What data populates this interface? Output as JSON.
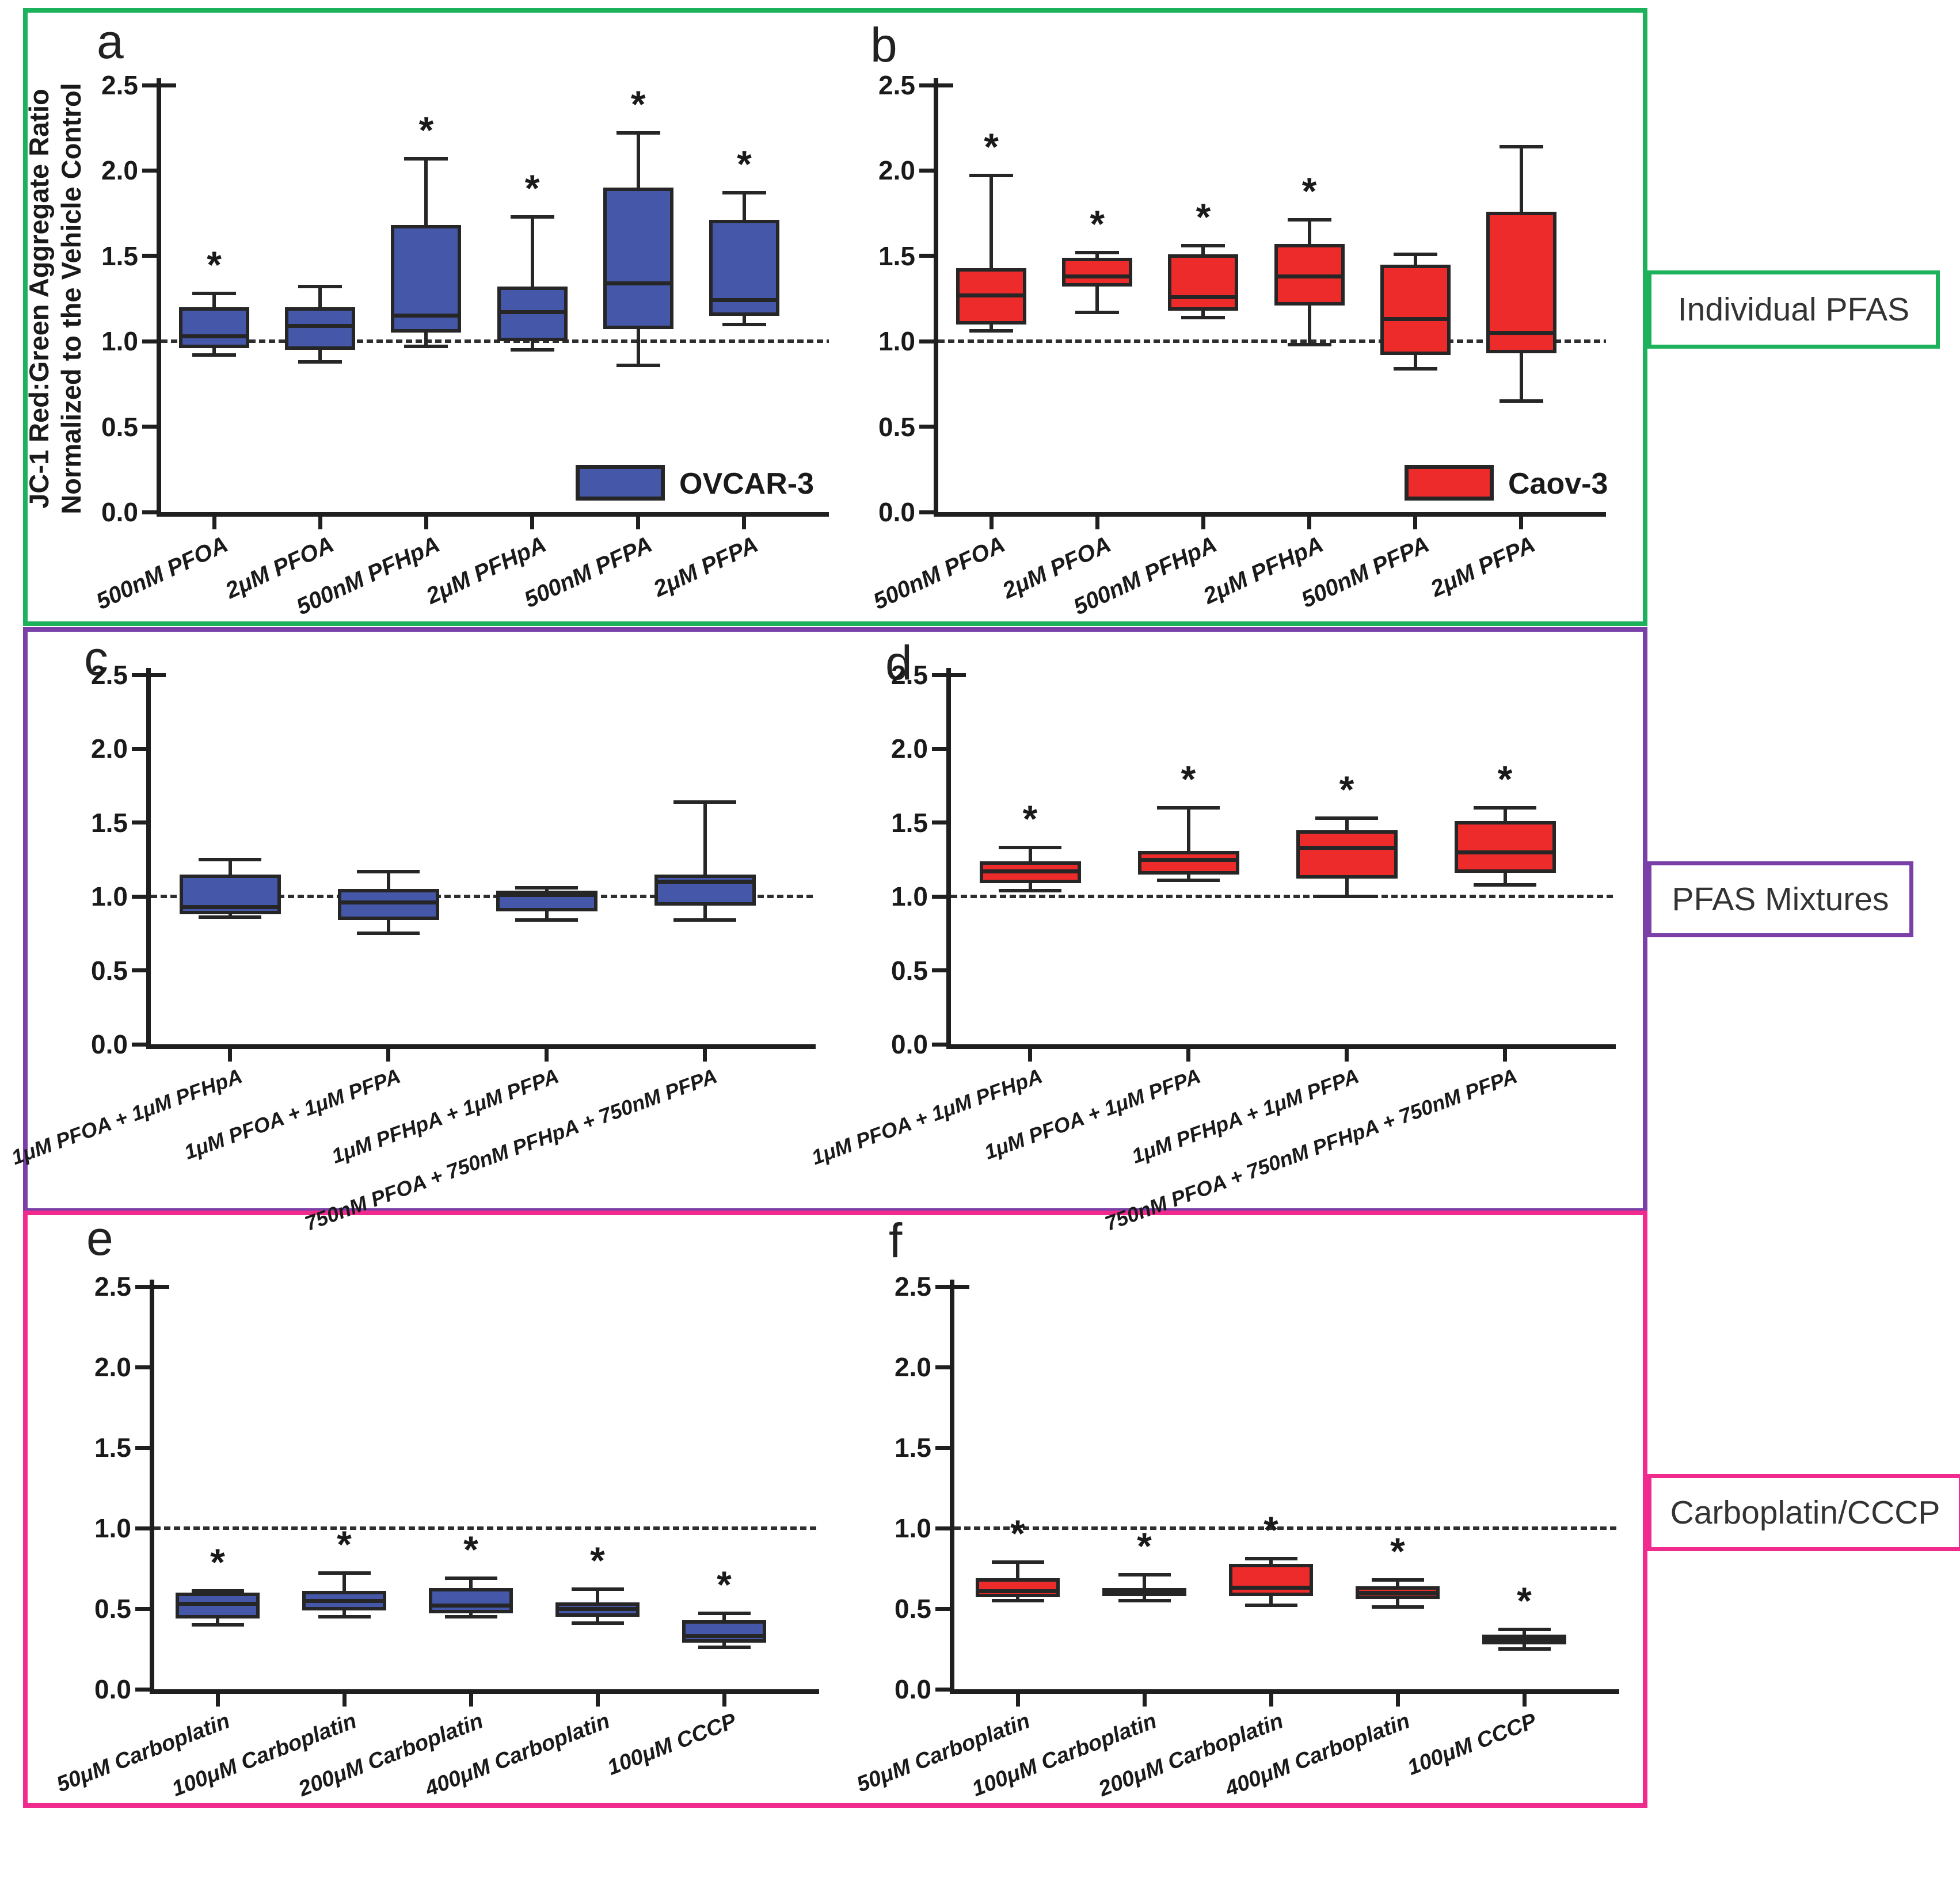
{
  "figure": {
    "ylabel_line1": "JC-1 Red:Green Aggregate Ratio",
    "ylabel_line2": "Normalized to the Vehicle Control",
    "group_labels": [
      {
        "label": "Individual PFAS",
        "color": "#1CB25B"
      },
      {
        "label": "PFAS Mixtures",
        "color": "#7B3FA8"
      },
      {
        "label": "Carboplatin/CCCP",
        "color": "#F12A8D"
      }
    ],
    "colors": {
      "ovcar3_blue": "#4457A8",
      "caov3_red": "#EE2B2B",
      "stroke": "#262626"
    }
  },
  "chart_data": [
    {
      "type": "box",
      "panel": "a",
      "group": "Individual PFAS",
      "cell_line": "OVCAR-3",
      "legend": "OVCAR-3",
      "color": "#4457A8",
      "ylim": [
        0,
        2.5
      ],
      "yticks": [
        0,
        0.5,
        1,
        1.5,
        2,
        2.5
      ],
      "reference_line": 1.0,
      "categories": [
        "500nM PFOA",
        "2μM PFOA",
        "500nM PFHpA",
        "2μM PFHpA",
        "500nM PFPA",
        "2μM PFPA"
      ],
      "boxes": [
        {
          "label": "500nM PFOA",
          "whisker_low": 0.92,
          "q1": 0.96,
          "median": 1.03,
          "q3": 1.2,
          "whisker_high": 1.28,
          "significant": true
        },
        {
          "label": "2μM PFOA",
          "whisker_low": 0.88,
          "q1": 0.95,
          "median": 1.09,
          "q3": 1.2,
          "whisker_high": 1.32,
          "significant": false
        },
        {
          "label": "500nM PFHpA",
          "whisker_low": 0.97,
          "q1": 1.05,
          "median": 1.15,
          "q3": 1.68,
          "whisker_high": 2.07,
          "significant": true
        },
        {
          "label": "2μM PFHpA",
          "whisker_low": 0.95,
          "q1": 1.0,
          "median": 1.17,
          "q3": 1.32,
          "whisker_high": 1.73,
          "significant": true
        },
        {
          "label": "500nM PFPA",
          "whisker_low": 0.86,
          "q1": 1.07,
          "median": 1.34,
          "q3": 1.9,
          "whisker_high": 2.22,
          "significant": true
        },
        {
          "label": "2μM PFPA",
          "whisker_low": 1.1,
          "q1": 1.15,
          "median": 1.24,
          "q3": 1.71,
          "whisker_high": 1.87,
          "significant": true
        }
      ]
    },
    {
      "type": "box",
      "panel": "b",
      "group": "Individual PFAS",
      "cell_line": "Caov-3",
      "legend": "Caov-3",
      "color": "#EE2B2B",
      "ylim": [
        0,
        2.5
      ],
      "yticks": [
        0,
        0.5,
        1,
        1.5,
        2,
        2.5
      ],
      "reference_line": 1.0,
      "categories": [
        "500nM PFOA",
        "2μM PFOA",
        "500nM PFHpA",
        "2μM PFHpA",
        "500nM PFPA",
        "2μM PFPA"
      ],
      "boxes": [
        {
          "label": "500nM PFOA",
          "whisker_low": 1.06,
          "q1": 1.1,
          "median": 1.27,
          "q3": 1.43,
          "whisker_high": 1.97,
          "significant": true
        },
        {
          "label": "2μM PFOA",
          "whisker_low": 1.17,
          "q1": 1.32,
          "median": 1.38,
          "q3": 1.49,
          "whisker_high": 1.52,
          "significant": true
        },
        {
          "label": "500nM PFHpA",
          "whisker_low": 1.14,
          "q1": 1.18,
          "median": 1.26,
          "q3": 1.51,
          "whisker_high": 1.56,
          "significant": true
        },
        {
          "label": "2μM PFHpA",
          "whisker_low": 0.98,
          "q1": 1.21,
          "median": 1.38,
          "q3": 1.57,
          "whisker_high": 1.71,
          "significant": true
        },
        {
          "label": "500nM PFPA",
          "whisker_low": 0.84,
          "q1": 0.92,
          "median": 1.13,
          "q3": 1.45,
          "whisker_high": 1.51,
          "significant": false
        },
        {
          "label": "2μM PFPA",
          "whisker_low": 0.65,
          "q1": 0.93,
          "median": 1.05,
          "q3": 1.76,
          "whisker_high": 2.14,
          "significant": false
        }
      ]
    },
    {
      "type": "box",
      "panel": "c",
      "group": "PFAS Mixtures",
      "cell_line": "OVCAR-3",
      "legend": null,
      "color": "#4457A8",
      "ylim": [
        0,
        2.5
      ],
      "yticks": [
        0,
        0.5,
        1,
        1.5,
        2,
        2.5
      ],
      "reference_line": 1.0,
      "categories": [
        "1μM PFOA + 1μM PFHpA",
        "1μM PFOA + 1μM PFPA",
        "1μM PFHpA + 1μM PFPA",
        "750nM PFOA + 750nM PFHpA + 750nM PFPA"
      ],
      "boxes": [
        {
          "label": "1μM PFOA + 1μM PFHpA",
          "whisker_low": 0.86,
          "q1": 0.88,
          "median": 0.93,
          "q3": 1.15,
          "whisker_high": 1.25,
          "significant": false
        },
        {
          "label": "1μM PFOA + 1μM PFPA",
          "whisker_low": 0.75,
          "q1": 0.84,
          "median": 0.96,
          "q3": 1.05,
          "whisker_high": 1.17,
          "significant": false
        },
        {
          "label": "1μM PFHpA + 1μM PFPA",
          "whisker_low": 0.84,
          "q1": 0.9,
          "median": 1.01,
          "q3": 1.04,
          "whisker_high": 1.06,
          "significant": false
        },
        {
          "label": "750nM PFOA + 750nM PFHpA + 750nM PFPA",
          "whisker_low": 0.84,
          "q1": 0.94,
          "median": 1.1,
          "q3": 1.15,
          "whisker_high": 1.64,
          "significant": false
        }
      ]
    },
    {
      "type": "box",
      "panel": "d",
      "group": "PFAS Mixtures",
      "cell_line": "Caov-3",
      "legend": null,
      "color": "#EE2B2B",
      "ylim": [
        0,
        2.5
      ],
      "yticks": [
        0,
        0.5,
        1,
        1.5,
        2,
        2.5
      ],
      "reference_line": 1.0,
      "categories": [
        "1μM PFOA + 1μM PFHpA",
        "1μM PFOA + 1μM PFPA",
        "1μM PFHpA + 1μM PFPA",
        "750nM PFOA + 750nM PFHpA + 750nM PFPA"
      ],
      "boxes": [
        {
          "label": "1μM PFOA + 1μM PFHpA",
          "whisker_low": 1.04,
          "q1": 1.09,
          "median": 1.17,
          "q3": 1.24,
          "whisker_high": 1.33,
          "significant": true
        },
        {
          "label": "1μM PFOA + 1μM PFPA",
          "whisker_low": 1.11,
          "q1": 1.15,
          "median": 1.25,
          "q3": 1.31,
          "whisker_high": 1.6,
          "significant": true
        },
        {
          "label": "1μM PFHpA + 1μM PFPA",
          "whisker_low": 1.0,
          "q1": 1.12,
          "median": 1.33,
          "q3": 1.45,
          "whisker_high": 1.53,
          "significant": true
        },
        {
          "label": "750nM PFOA + 750nM PFHpA + 750nM PFPA",
          "whisker_low": 1.08,
          "q1": 1.16,
          "median": 1.3,
          "q3": 1.51,
          "whisker_high": 1.6,
          "significant": true
        }
      ]
    },
    {
      "type": "box",
      "panel": "e",
      "group": "Carboplatin/CCCP",
      "cell_line": "OVCAR-3",
      "legend": null,
      "color": "#4457A8",
      "ylim": [
        0,
        2.5
      ],
      "yticks": [
        0,
        0.5,
        1,
        1.5,
        2,
        2.5
      ],
      "reference_line": 1.0,
      "categories": [
        "50μM Carboplatin",
        "100μM Carboplatin",
        "200μM Carboplatin",
        "400μM Carboplatin",
        "100μM CCCP"
      ],
      "boxes": [
        {
          "label": "50μM Carboplatin",
          "whisker_low": 0.4,
          "q1": 0.44,
          "median": 0.53,
          "q3": 0.6,
          "whisker_high": 0.61,
          "significant": true
        },
        {
          "label": "100μM Carboplatin",
          "whisker_low": 0.45,
          "q1": 0.49,
          "median": 0.55,
          "q3": 0.61,
          "whisker_high": 0.72,
          "significant": true
        },
        {
          "label": "200μM Carboplatin",
          "whisker_low": 0.45,
          "q1": 0.47,
          "median": 0.52,
          "q3": 0.63,
          "whisker_high": 0.69,
          "significant": true
        },
        {
          "label": "400μM Carboplatin",
          "whisker_low": 0.41,
          "q1": 0.45,
          "median": 0.5,
          "q3": 0.54,
          "whisker_high": 0.62,
          "significant": true
        },
        {
          "label": "100μM CCCP",
          "whisker_low": 0.26,
          "q1": 0.29,
          "median": 0.33,
          "q3": 0.43,
          "whisker_high": 0.47,
          "significant": true
        }
      ]
    },
    {
      "type": "box",
      "panel": "f",
      "group": "Carboplatin/CCCP",
      "cell_line": "Caov-3",
      "legend": null,
      "color": "#EE2B2B",
      "ylim": [
        0,
        2.5
      ],
      "yticks": [
        0,
        0.5,
        1,
        1.5,
        2,
        2.5
      ],
      "reference_line": 1.0,
      "categories": [
        "50μM Carboplatin",
        "100μM Carboplatin",
        "200μM Carboplatin",
        "400μM Carboplatin",
        "100μM CCCP"
      ],
      "boxes": [
        {
          "label": "50μM Carboplatin",
          "whisker_low": 0.55,
          "q1": 0.57,
          "median": 0.61,
          "q3": 0.69,
          "whisker_high": 0.79,
          "significant": true
        },
        {
          "label": "100μM Carboplatin",
          "whisker_low": 0.55,
          "q1": 0.58,
          "median": 0.6,
          "q3": 0.63,
          "whisker_high": 0.71,
          "significant": true
        },
        {
          "label": "200μM Carboplatin",
          "whisker_low": 0.52,
          "q1": 0.58,
          "median": 0.63,
          "q3": 0.78,
          "whisker_high": 0.81,
          "significant": true
        },
        {
          "label": "400μM Carboplatin",
          "whisker_low": 0.51,
          "q1": 0.56,
          "median": 0.6,
          "q3": 0.64,
          "whisker_high": 0.68,
          "significant": true
        },
        {
          "label": "100μM CCCP",
          "whisker_low": 0.25,
          "q1": 0.28,
          "median": 0.31,
          "q3": 0.34,
          "whisker_high": 0.37,
          "significant": true
        }
      ]
    }
  ]
}
